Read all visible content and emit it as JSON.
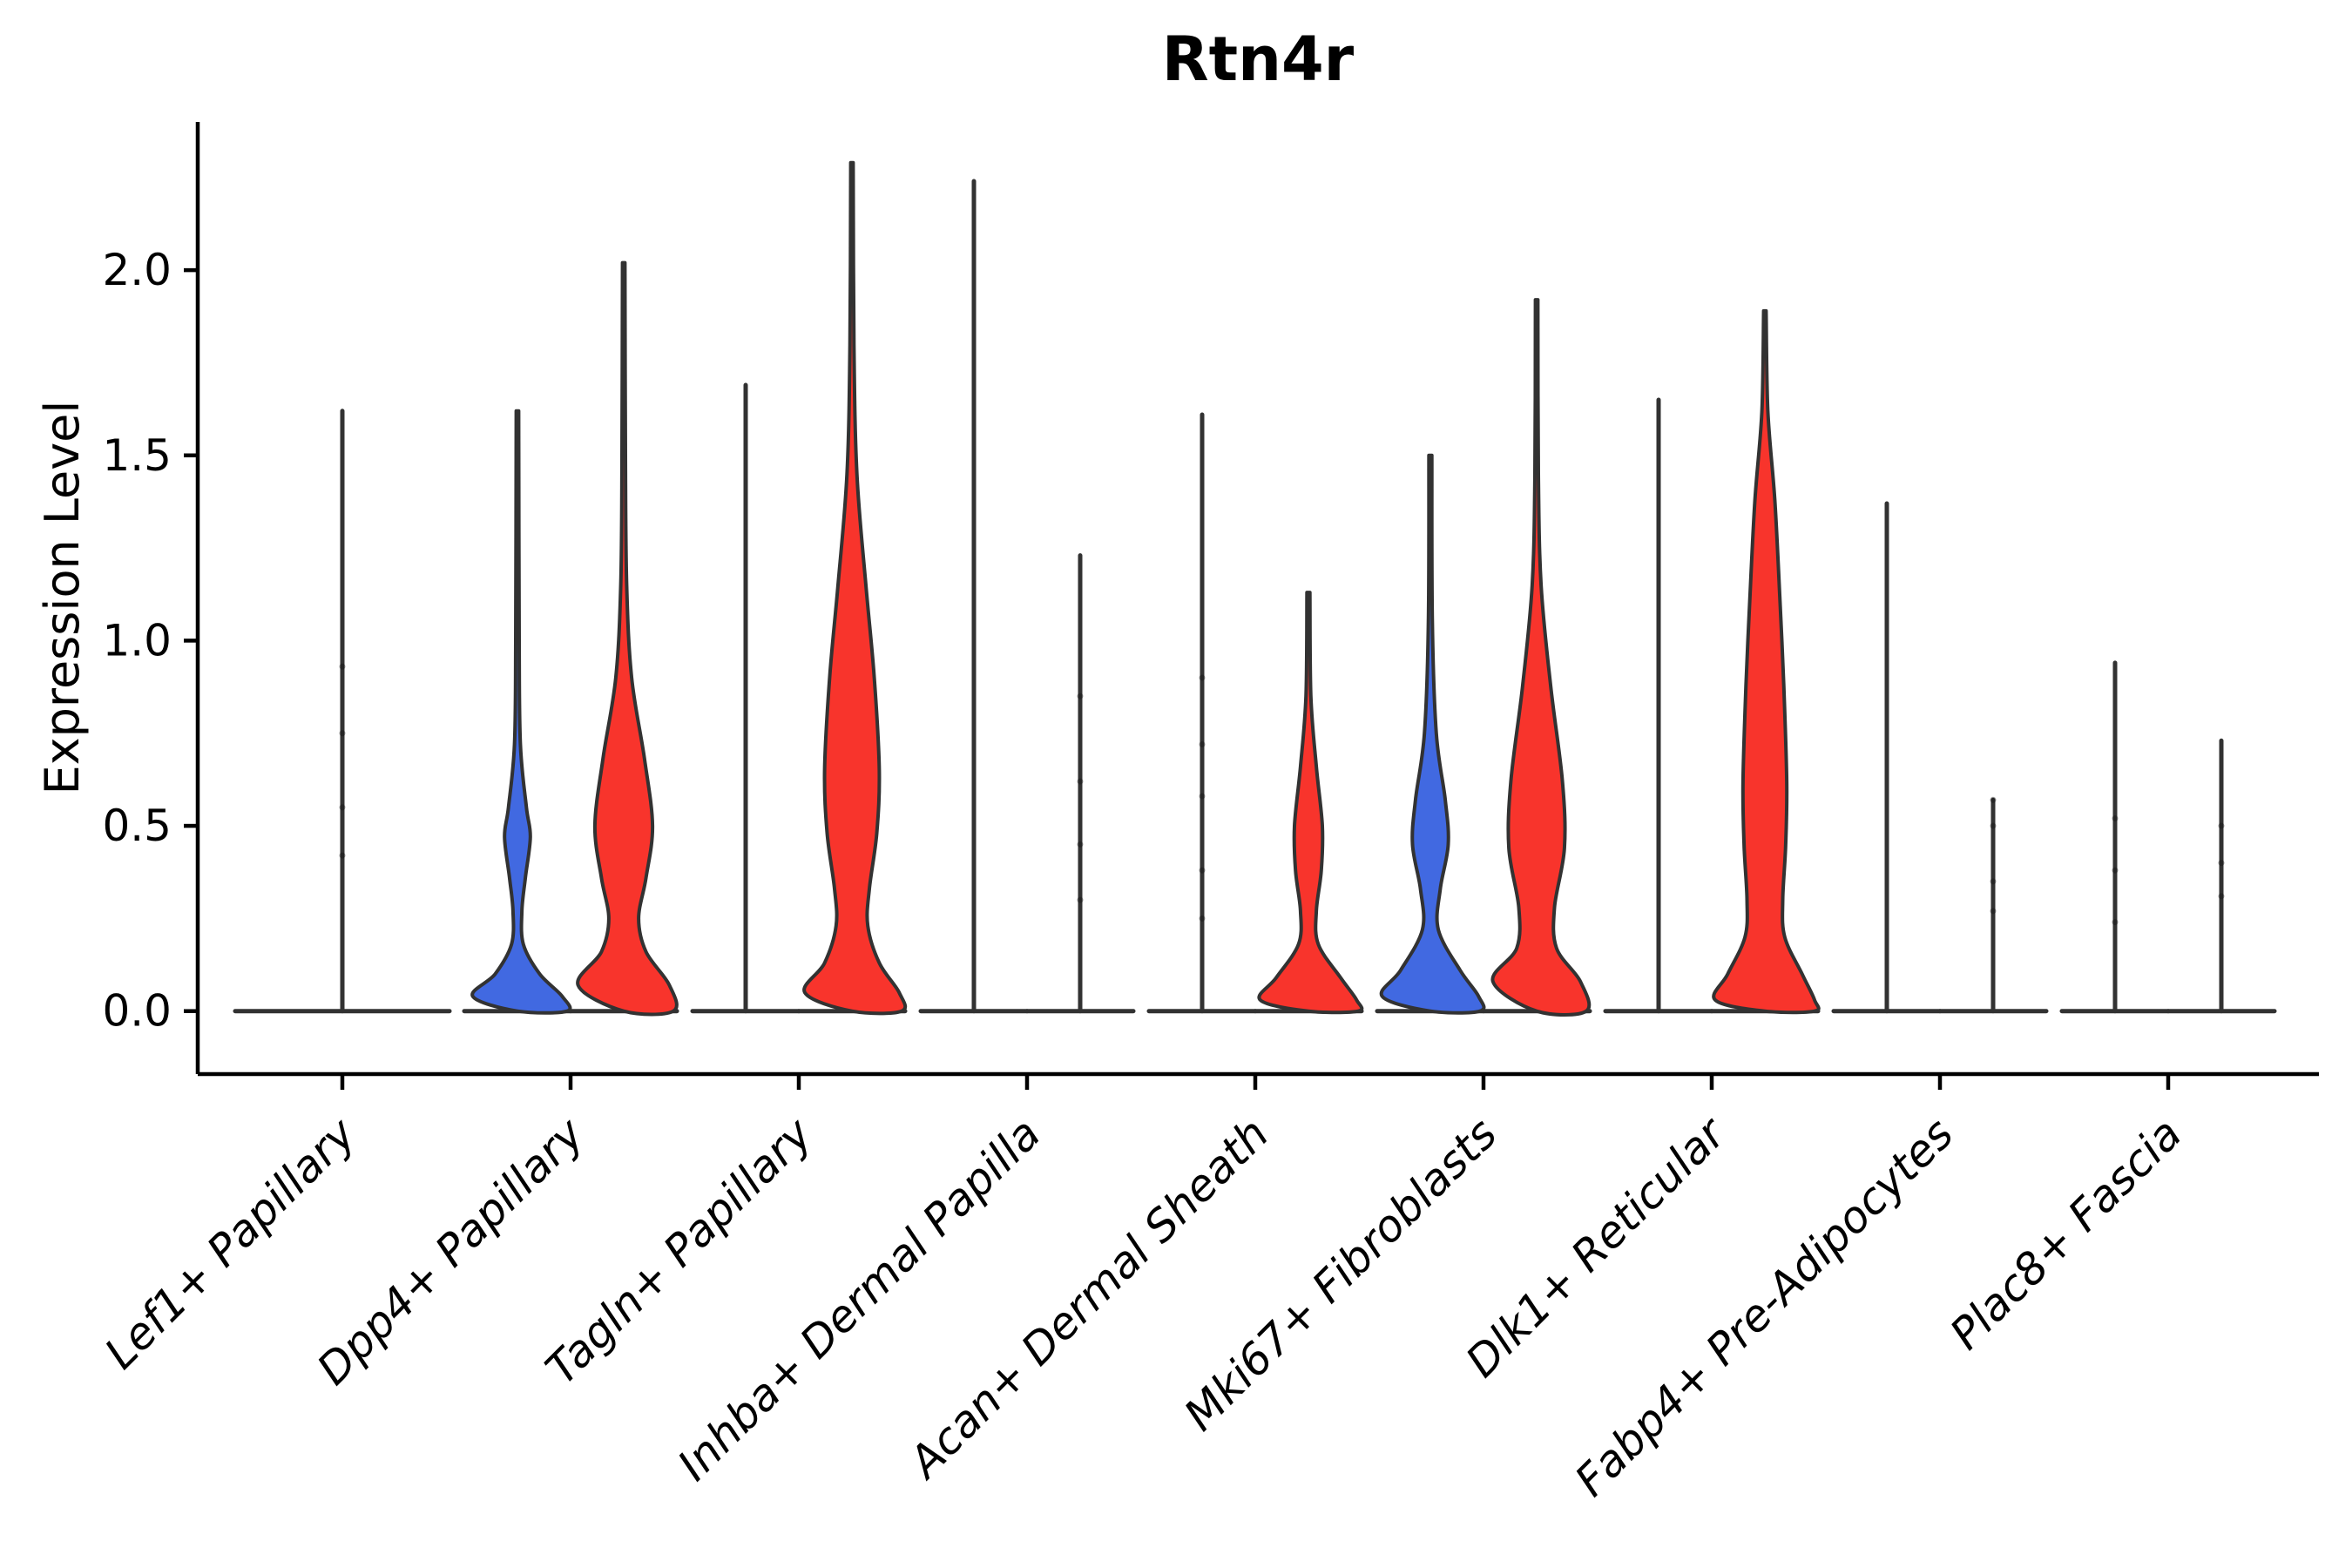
{
  "figure": {
    "title": "Rtn4r",
    "ylabel": "Expression Level"
  },
  "colors": {
    "blue": "#4169E1",
    "red": "#F8342C",
    "outline": "#323232",
    "spine": "#000000",
    "dot": "#111111",
    "background": "#ffffff",
    "text": "#000000"
  },
  "chart_data": {
    "type": "violin",
    "title": "Rtn4r",
    "xlabel": "",
    "ylabel": "Expression Level",
    "ylim": [
      -0.17,
      2.4
    ],
    "yticks": [
      0.0,
      0.5,
      1.0,
      1.5,
      2.0
    ],
    "ytick_labels": [
      "0.0",
      "0.5",
      "1.0",
      "1.5",
      "2.0"
    ],
    "grid": false,
    "legend": "none",
    "split_fills": {
      "left": "#4169E1",
      "right": "#F8342C"
    },
    "categories": [
      "Lef1+ Papillary",
      "Dpp4+ Papillary",
      "Tagln+ Papillary",
      "Inhba+ Dermal Papilla",
      "Acan+ Dermal Sheath",
      "Mki67+ Fibroblasts",
      "Dlk1+ Reticular",
      "Fabp4+ Pre-Adipocytes",
      "Plac8+ Fascia"
    ],
    "groups": [
      {
        "category": "Lef1+ Papillary",
        "violins": [
          {
            "side": "center",
            "fill": "none",
            "kind": "spike",
            "max": 1.62,
            "dots": [
              0.93,
              0.75,
              0.55,
              0.42
            ]
          }
        ]
      },
      {
        "category": "Dpp4+ Papillary",
        "violins": [
          {
            "side": "left",
            "fill": "blue",
            "kind": "body",
            "max": 1.62,
            "profile": [
              [
                1.62,
                0.025
              ],
              [
                1.0,
                0.035
              ],
              [
                0.72,
                0.06
              ],
              [
                0.55,
                0.18
              ],
              [
                0.47,
                0.26
              ],
              [
                0.36,
                0.16
              ],
              [
                0.27,
                0.09
              ],
              [
                0.18,
                0.12
              ],
              [
                0.1,
                0.45
              ],
              [
                0.04,
                0.9
              ],
              [
                0.0,
                1.0
              ]
            ]
          },
          {
            "side": "right",
            "fill": "red",
            "kind": "body",
            "max": 2.02,
            "profile": [
              [
                2.02,
                0.025
              ],
              [
                1.5,
                0.035
              ],
              [
                1.15,
                0.06
              ],
              [
                0.9,
                0.16
              ],
              [
                0.68,
                0.42
              ],
              [
                0.5,
                0.58
              ],
              [
                0.36,
                0.45
              ],
              [
                0.25,
                0.3
              ],
              [
                0.16,
                0.45
              ],
              [
                0.07,
                0.92
              ],
              [
                0.0,
                1.0
              ]
            ]
          }
        ]
      },
      {
        "category": "Tagln+ Papillary",
        "violins": [
          {
            "side": "left",
            "fill": "blue",
            "kind": "spike",
            "max": 1.69
          },
          {
            "side": "right",
            "fill": "red",
            "kind": "body",
            "max": 2.29,
            "profile": [
              [
                2.29,
                0.025
              ],
              [
                1.8,
                0.04
              ],
              [
                1.45,
                0.1
              ],
              [
                1.15,
                0.28
              ],
              [
                0.9,
                0.45
              ],
              [
                0.65,
                0.55
              ],
              [
                0.48,
                0.5
              ],
              [
                0.33,
                0.35
              ],
              [
                0.23,
                0.32
              ],
              [
                0.13,
                0.55
              ],
              [
                0.05,
                0.95
              ],
              [
                0.0,
                1.0
              ]
            ]
          }
        ]
      },
      {
        "category": "Inhba+ Dermal Papilla",
        "violins": [
          {
            "side": "left",
            "fill": "blue",
            "kind": "spike",
            "max": 2.24
          },
          {
            "side": "right",
            "fill": "red",
            "kind": "spike",
            "max": 1.23,
            "dots": [
              0.85,
              0.62,
              0.45,
              0.3
            ]
          }
        ]
      },
      {
        "category": "Acan+ Dermal Sheath",
        "violins": [
          {
            "side": "left",
            "fill": "blue",
            "kind": "spike",
            "max": 1.61,
            "dots": [
              0.9,
              0.72,
              0.58,
              0.38,
              0.25
            ]
          },
          {
            "side": "right",
            "fill": "red",
            "kind": "body",
            "max": 1.13,
            "profile": [
              [
                1.13,
                0.03
              ],
              [
                0.85,
                0.05
              ],
              [
                0.66,
                0.16
              ],
              [
                0.5,
                0.28
              ],
              [
                0.38,
                0.26
              ],
              [
                0.27,
                0.16
              ],
              [
                0.18,
                0.2
              ],
              [
                0.09,
                0.65
              ],
              [
                0.03,
                0.97
              ],
              [
                0.0,
                1.0
              ]
            ]
          }
        ]
      },
      {
        "category": "Mki67+ Fibroblasts",
        "violins": [
          {
            "side": "left",
            "fill": "blue",
            "kind": "body",
            "max": 1.5,
            "profile": [
              [
                1.5,
                0.03
              ],
              [
                1.05,
                0.04
              ],
              [
                0.75,
                0.12
              ],
              [
                0.57,
                0.3
              ],
              [
                0.45,
                0.36
              ],
              [
                0.33,
                0.2
              ],
              [
                0.22,
                0.16
              ],
              [
                0.11,
                0.6
              ],
              [
                0.04,
                0.97
              ],
              [
                0.0,
                1.0
              ]
            ]
          },
          {
            "side": "right",
            "fill": "red",
            "kind": "body",
            "max": 1.92,
            "profile": [
              [
                1.92,
                0.025
              ],
              [
                1.45,
                0.035
              ],
              [
                1.15,
                0.09
              ],
              [
                0.88,
                0.28
              ],
              [
                0.62,
                0.52
              ],
              [
                0.44,
                0.56
              ],
              [
                0.28,
                0.36
              ],
              [
                0.17,
                0.4
              ],
              [
                0.08,
                0.88
              ],
              [
                0.0,
                1.0
              ]
            ]
          }
        ]
      },
      {
        "category": "Dlk1+ Reticular",
        "violins": [
          {
            "side": "left",
            "fill": "blue",
            "kind": "spike",
            "max": 1.65
          },
          {
            "side": "right",
            "fill": "red",
            "kind": "body",
            "max": 1.89,
            "profile": [
              [
                1.89,
                0.025
              ],
              [
                1.62,
                0.06
              ],
              [
                1.38,
                0.2
              ],
              [
                1.12,
                0.3
              ],
              [
                0.88,
                0.38
              ],
              [
                0.62,
                0.44
              ],
              [
                0.45,
                0.42
              ],
              [
                0.3,
                0.36
              ],
              [
                0.2,
                0.4
              ],
              [
                0.1,
                0.75
              ],
              [
                0.03,
                1.0
              ],
              [
                0.0,
                1.0
              ]
            ]
          }
        ]
      },
      {
        "category": "Fabp4+ Pre-Adipocytes",
        "violins": [
          {
            "side": "left",
            "fill": "blue",
            "kind": "spike",
            "max": 1.37
          },
          {
            "side": "right",
            "fill": "red",
            "kind": "spike",
            "max": 0.57,
            "dots": [
              0.57,
              0.5,
              0.35,
              0.27
            ]
          }
        ]
      },
      {
        "category": "Plac8+ Fascia",
        "violins": [
          {
            "side": "left",
            "fill": "blue",
            "kind": "spike",
            "max": 0.94,
            "dots": [
              0.52,
              0.38,
              0.24
            ]
          },
          {
            "side": "right",
            "fill": "red",
            "kind": "spike",
            "max": 0.73,
            "dots": [
              0.5,
              0.4,
              0.31
            ]
          }
        ]
      }
    ]
  }
}
